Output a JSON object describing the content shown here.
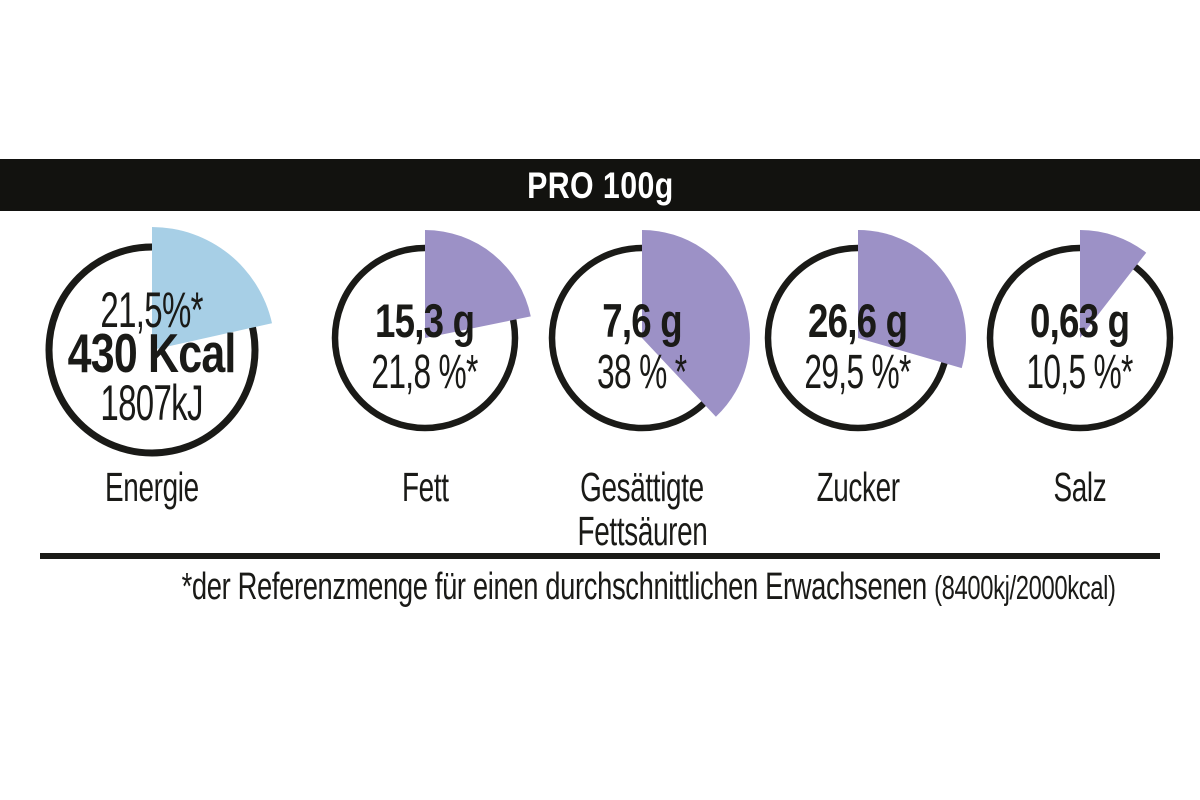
{
  "header": {
    "title": "PRO 100g"
  },
  "colors": {
    "ink": "#1a1a17",
    "bar": "#12120f",
    "wedge_blue": "#a7cfe6",
    "wedge_purple": "#9c91c6"
  },
  "dials": [
    {
      "id": "energie",
      "label_lines": [
        "Energie"
      ],
      "percent": 21.5,
      "percent_label": "21,5%*",
      "value_label": "430 Kcal",
      "secondary_label": "1807kJ",
      "wedge_color": "#a7cfe6"
    },
    {
      "id": "fett",
      "label_lines": [
        "Fett"
      ],
      "percent": 21.8,
      "value_label": "15,3 g",
      "percent_label": "21,8 %*",
      "wedge_color": "#9c91c6"
    },
    {
      "id": "gesaettigte-fettsaeuren",
      "label_lines": [
        "Gesättigte",
        "Fettsäuren"
      ],
      "percent": 38,
      "value_label": "7,6 g",
      "percent_label": "38 % *",
      "wedge_color": "#9c91c6"
    },
    {
      "id": "zucker",
      "label_lines": [
        "Zucker"
      ],
      "percent": 29.5,
      "value_label": "26,6 g",
      "percent_label": "29,5 %*",
      "wedge_color": "#9c91c6"
    },
    {
      "id": "salz",
      "label_lines": [
        "Salz"
      ],
      "percent": 10.5,
      "value_label": "0,63 g",
      "percent_label": "10,5 %*",
      "wedge_color": "#9c91c6"
    }
  ],
  "footnote": {
    "main": "*der Referenzmenge für einen durchschnittlichen Erwachsenen ",
    "paren": "(8400kj/2000kcal)"
  },
  "chart_data": {
    "type": "pie",
    "title": "PRO 100g",
    "subtitle": "Nährwerte pro 100g (Referenzmengen-Dials)",
    "categories": [
      "Energie",
      "Fett",
      "Gesättigte Fettsäuren",
      "Zucker",
      "Salz"
    ],
    "series": [
      {
        "name": "Energie",
        "value_label": "430 Kcal",
        "kilojoules_label": "1807kJ",
        "percent_of_reference": 21.5
      },
      {
        "name": "Fett",
        "grams": 15.3,
        "percent_of_reference": 21.8
      },
      {
        "name": "Gesättigte Fettsäuren",
        "grams": 7.6,
        "percent_of_reference": 38
      },
      {
        "name": "Zucker",
        "grams": 26.6,
        "percent_of_reference": 29.5
      },
      {
        "name": "Salz",
        "grams": 0.63,
        "percent_of_reference": 10.5
      }
    ],
    "wedge_start_angle_deg": 0,
    "wedge_direction": "clockwise",
    "legend_position": "none",
    "footnote": "*der Referenzmenge für einen durchschnittlichen Erwachsenen (8400kj/2000kcal)"
  }
}
